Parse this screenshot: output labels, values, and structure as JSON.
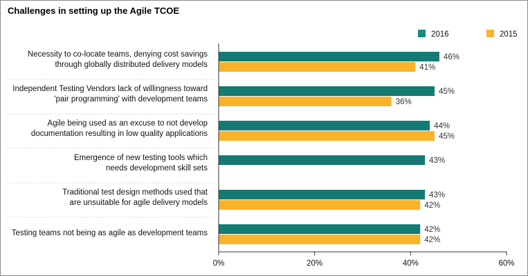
{
  "chart_data": {
    "type": "bar",
    "orientation": "horizontal",
    "title": "Challenges in setting up the Agile TCOE",
    "categories": [
      [
        "Necessity to co-locate teams, denying cost savings",
        "through globally distributed delivery models"
      ],
      [
        "Independent Testing Vendors lack of willingness toward",
        "'pair programming' with development teams"
      ],
      [
        "Agile being used as an excuse to not develop",
        "documentation resulting in low quality applications"
      ],
      [
        "Emergence of new testing tools which",
        "needs development skill sets"
      ],
      [
        "Traditional test design methods used that",
        "are unsuitable for agile delivery models"
      ],
      [
        "Testing teams not being as agile as development teams"
      ]
    ],
    "series": [
      {
        "name": "2016",
        "color": "#1a8a82",
        "values": [
          46,
          45,
          44,
          43,
          43,
          42
        ],
        "labels": [
          "46%",
          "45%",
          "44%",
          "43%",
          "43%",
          "42%"
        ]
      },
      {
        "name": "2015",
        "color": "#f8b32b",
        "values": [
          41,
          36,
          45,
          null,
          42,
          42
        ],
        "labels": [
          "41%",
          "36%",
          "45%",
          null,
          "42%",
          "42%"
        ]
      }
    ],
    "xlim": [
      0,
      60
    ],
    "xticks": [
      0,
      20,
      40,
      60
    ],
    "xtick_labels": [
      "0%",
      "20%",
      "40%",
      "60%"
    ],
    "legend_position": "top-right",
    "grid": false
  }
}
